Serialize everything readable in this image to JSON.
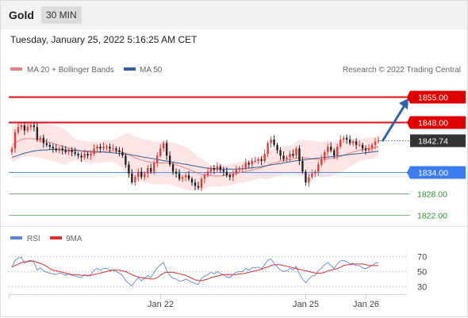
{
  "header": {
    "symbol": "Gold",
    "timeframe": "30 MIN",
    "datetime": "Tuesday, January 25, 2022 5:16:25 AM CET"
  },
  "credit": "Research © 2022 Trading Central",
  "colors": {
    "red": "#dd1111",
    "blue": "#4a8ef5",
    "green": "#7cb87c",
    "ma20": "#f08080",
    "ma50": "#2f5f9f",
    "band": "#fde2e2",
    "up": "#e23b3b",
    "down": "#222222",
    "rsi": "#5b86d6",
    "rsi_ma": "#e03030",
    "arrow": "#2f63b0"
  },
  "chart_data": [
    {
      "type": "candlestick",
      "legend": [
        {
          "label": "MA 20 + Bollinger Bands",
          "color": "#f08080"
        },
        {
          "label": "MA 50",
          "color": "#2f5f9f"
        }
      ],
      "ylim": [
        1819,
        1859
      ],
      "x_labels": [
        {
          "label": "Jan 22",
          "index": 47
        },
        {
          "label": "Jan 25",
          "index": 93
        },
        {
          "label": "Jan 26",
          "index": 112
        }
      ],
      "current_price": 1842.74,
      "levels": [
        {
          "value": 1855.0,
          "label": "1855.00",
          "kind": "resistance"
        },
        {
          "value": 1848.0,
          "label": "1848.00",
          "kind": "resistance"
        },
        {
          "value": 1842.74,
          "label": "1842.74",
          "kind": "last"
        },
        {
          "value": 1834.0,
          "label": "1834.00",
          "kind": "pivot"
        },
        {
          "value": 1828.0,
          "label": "1828.00",
          "kind": "support"
        },
        {
          "value": 1822.0,
          "label": "1822.00",
          "kind": "support"
        }
      ],
      "forecast_arrow": {
        "from_value": 1842.5,
        "to_value": 1855.0
      },
      "close": [
        1840.5,
        1845.0,
        1846.5,
        1847.0,
        1845.5,
        1846.5,
        1847.0,
        1846.5,
        1843.0,
        1843.5,
        1842.0,
        1841.5,
        1841.0,
        1840.5,
        1840.0,
        1840.5,
        1840.0,
        1839.5,
        1840.0,
        1839.5,
        1839.0,
        1838.5,
        1838.0,
        1839.0,
        1838.5,
        1839.0,
        1840.5,
        1841.0,
        1840.5,
        1841.0,
        1841.0,
        1840.5,
        1840.5,
        1840.0,
        1839.5,
        1838.5,
        1836.0,
        1833.5,
        1831.0,
        1832.5,
        1834.0,
        1832.5,
        1833.5,
        1835.0,
        1834.0,
        1836.5,
        1838.5,
        1840.5,
        1842.0,
        1838.5,
        1836.0,
        1834.0,
        1833.5,
        1832.0,
        1832.5,
        1833.0,
        1832.0,
        1831.0,
        1830.0,
        1829.5,
        1832.0,
        1833.0,
        1834.0,
        1835.0,
        1834.5,
        1835.5,
        1834.5,
        1834.0,
        1833.0,
        1832.5,
        1833.5,
        1834.5,
        1835.0,
        1835.0,
        1836.5,
        1836.0,
        1837.0,
        1837.0,
        1837.5,
        1837.0,
        1839.0,
        1842.0,
        1843.0,
        1841.5,
        1840.0,
        1838.5,
        1837.5,
        1838.0,
        1839.0,
        1838.5,
        1840.5,
        1837.0,
        1834.0,
        1831.0,
        1832.5,
        1833.5,
        1834.0,
        1836.0,
        1837.5,
        1839.5,
        1841.0,
        1840.0,
        1838.5,
        1841.0,
        1843.0,
        1843.5,
        1843.0,
        1842.0,
        1842.5,
        1841.5,
        1841.5,
        1840.5,
        1840.0,
        1840.5,
        1841.5,
        1842.5,
        1842.74
      ],
      "ma20": [
        1841.5,
        1842.0,
        1842.6,
        1843.0,
        1843.2,
        1843.3,
        1843.3,
        1843.2,
        1843.0,
        1842.8,
        1842.6,
        1842.4,
        1842.2,
        1842.0,
        1841.7,
        1841.4,
        1841.1,
        1840.8,
        1840.6,
        1840.4,
        1840.2,
        1840.0,
        1839.8,
        1839.6,
        1839.5,
        1839.4,
        1839.4,
        1839.4,
        1839.5,
        1839.6,
        1839.7,
        1839.8,
        1839.8,
        1839.8,
        1839.7,
        1839.5,
        1839.2,
        1838.8,
        1838.3,
        1837.9,
        1837.6,
        1837.3,
        1837.0,
        1836.8,
        1836.6,
        1836.5,
        1836.4,
        1836.4,
        1836.5,
        1836.5,
        1836.4,
        1836.2,
        1835.9,
        1835.6,
        1835.3,
        1835.0,
        1834.7,
        1834.3,
        1833.9,
        1833.5,
        1833.3,
        1833.1,
        1833.0,
        1832.9,
        1832.8,
        1832.8,
        1832.8,
        1832.9,
        1833.0,
        1833.2,
        1833.4,
        1833.5,
        1833.7,
        1833.9,
        1834.1,
        1834.3,
        1834.5,
        1834.7,
        1834.9,
        1835.2,
        1835.5,
        1835.8,
        1836.2,
        1836.5,
        1836.7,
        1836.9,
        1837.1,
        1837.3,
        1837.4,
        1837.6,
        1837.8,
        1837.9,
        1837.9,
        1837.8,
        1837.7,
        1837.6,
        1837.5,
        1837.4,
        1837.4,
        1837.5,
        1837.6,
        1837.7,
        1837.8,
        1838.0,
        1838.3,
        1838.6,
        1838.9,
        1839.2,
        1839.5,
        1839.8,
        1840.0,
        1840.2,
        1840.4,
        1840.5,
        1840.6,
        1840.8,
        1841.0
      ],
      "ma50": [
        1838.0,
        1838.3,
        1838.6,
        1838.9,
        1839.2,
        1839.4,
        1839.6,
        1839.8,
        1839.9,
        1840.0,
        1840.1,
        1840.1,
        1840.2,
        1840.2,
        1840.2,
        1840.2,
        1840.1,
        1840.1,
        1840.0,
        1840.0,
        1839.9,
        1839.9,
        1839.8,
        1839.8,
        1839.7,
        1839.7,
        1839.6,
        1839.6,
        1839.5,
        1839.5,
        1839.4,
        1839.4,
        1839.3,
        1839.2,
        1839.1,
        1839.0,
        1838.9,
        1838.8,
        1838.7,
        1838.5,
        1838.4,
        1838.2,
        1838.0,
        1837.9,
        1837.7,
        1837.6,
        1837.4,
        1837.3,
        1837.1,
        1837.0,
        1836.8,
        1836.7,
        1836.5,
        1836.4,
        1836.2,
        1836.1,
        1835.9,
        1835.7,
        1835.6,
        1835.4,
        1835.3,
        1835.1,
        1835.0,
        1834.9,
        1834.8,
        1834.8,
        1834.7,
        1834.7,
        1834.7,
        1834.7,
        1834.7,
        1834.7,
        1834.8,
        1834.8,
        1834.9,
        1835.0,
        1835.1,
        1835.2,
        1835.3,
        1835.4,
        1835.6,
        1835.7,
        1835.9,
        1836.0,
        1836.2,
        1836.3,
        1836.5,
        1836.6,
        1836.8,
        1836.9,
        1837.1,
        1837.2,
        1837.3,
        1837.4,
        1837.5,
        1837.6,
        1837.7,
        1837.8,
        1837.9,
        1838.0,
        1838.1,
        1838.2,
        1838.3,
        1838.4,
        1838.5,
        1838.6,
        1838.7,
        1838.8,
        1838.9,
        1839.0,
        1839.1,
        1839.2,
        1839.3,
        1839.4,
        1839.5,
        1839.6,
        1839.7
      ],
      "band_width": [
        5.0,
        5.0,
        5.0,
        5.0,
        5.0,
        5.0,
        5.0,
        5.0,
        5.0,
        5.0,
        5.0,
        5.0,
        5.0,
        5.0,
        5.0,
        5.0,
        5.0,
        5.0,
        4.0,
        3.5,
        3.0,
        3.0,
        3.0,
        3.0,
        3.0,
        3.0,
        3.0,
        3.0,
        3.0,
        3.0,
        3.0,
        3.0,
        3.0,
        3.5,
        4.0,
        4.5,
        5.5,
        6.0,
        6.0,
        6.0,
        6.0,
        6.0,
        6.0,
        6.0,
        6.0,
        6.0,
        6.0,
        6.0,
        6.0,
        6.0,
        6.0,
        6.0,
        6.0,
        6.0,
        6.0,
        6.0,
        6.0,
        5.5,
        5.0,
        4.5,
        4.5,
        4.0,
        3.5,
        3.0,
        3.0,
        3.0,
        3.0,
        3.0,
        3.0,
        3.0,
        3.0,
        3.0,
        3.0,
        3.0,
        3.0,
        3.0,
        3.0,
        3.0,
        3.0,
        3.0,
        3.5,
        4.0,
        4.0,
        4.0,
        4.0,
        4.0,
        4.0,
        4.0,
        4.0,
        4.0,
        4.5,
        5.0,
        5.0,
        5.0,
        5.0,
        5.0,
        5.0,
        5.0,
        5.0,
        5.0,
        5.0,
        5.0,
        4.5,
        4.5,
        4.5,
        4.5,
        4.0,
        4.0,
        3.5,
        3.5,
        3.0,
        3.0,
        3.0,
        3.0,
        3.0,
        3.0,
        3.0
      ]
    },
    {
      "type": "line",
      "legend": [
        {
          "label": "RSI",
          "color": "#5b86d6"
        },
        {
          "label": "9MA",
          "color": "#e03030"
        }
      ],
      "ylim": [
        20,
        80
      ],
      "yticks": [
        {
          "value": 70,
          "label": "70"
        },
        {
          "value": 50,
          "label": "50"
        },
        {
          "value": 30,
          "label": "30"
        }
      ],
      "rsi": [
        55,
        64,
        67,
        68,
        60,
        63,
        64,
        61,
        51,
        54,
        50,
        48,
        47,
        46,
        45,
        47,
        46,
        44,
        46,
        44,
        43,
        42,
        41,
        45,
        43,
        45,
        51,
        53,
        51,
        53,
        53,
        51,
        51,
        49,
        47,
        44,
        37,
        33,
        30,
        36,
        41,
        37,
        40,
        44,
        41,
        48,
        54,
        58,
        61,
        50,
        44,
        40,
        39,
        36,
        37,
        39,
        37,
        35,
        33,
        32,
        40,
        43,
        45,
        48,
        46,
        49,
        46,
        45,
        42,
        41,
        45,
        48,
        49,
        49,
        53,
        51,
        54,
        54,
        55,
        53,
        58,
        64,
        66,
        60,
        55,
        51,
        49,
        50,
        53,
        51,
        56,
        46,
        39,
        34,
        39,
        43,
        44,
        50,
        54,
        58,
        61,
        57,
        53,
        59,
        63,
        64,
        62,
        59,
        60,
        57,
        57,
        54,
        53,
        55,
        57,
        60,
        61
      ],
      "rsi_ma": [
        55,
        57,
        59,
        61,
        62,
        62,
        63,
        63,
        61,
        60,
        58,
        56,
        53,
        51,
        50,
        49,
        48,
        47,
        46,
        45,
        45,
        45,
        44,
        44,
        44,
        44,
        45,
        46,
        47,
        48,
        49,
        50,
        51,
        51,
        51,
        50,
        49,
        47,
        45,
        43,
        42,
        41,
        40,
        40,
        39,
        39,
        41,
        44,
        47,
        48,
        48,
        48,
        47,
        46,
        45,
        44,
        42,
        40,
        38,
        37,
        37,
        38,
        39,
        41,
        42,
        43,
        44,
        45,
        45,
        45,
        45,
        45,
        46,
        46,
        47,
        48,
        49,
        50,
        51,
        52,
        54,
        55,
        57,
        58,
        58,
        58,
        57,
        56,
        55,
        54,
        53,
        52,
        51,
        50,
        49,
        48,
        47,
        47,
        47,
        48,
        50,
        51,
        52,
        53,
        55,
        57,
        58,
        58,
        59,
        59,
        59,
        59,
        58,
        57,
        57,
        57,
        57
      ]
    }
  ]
}
